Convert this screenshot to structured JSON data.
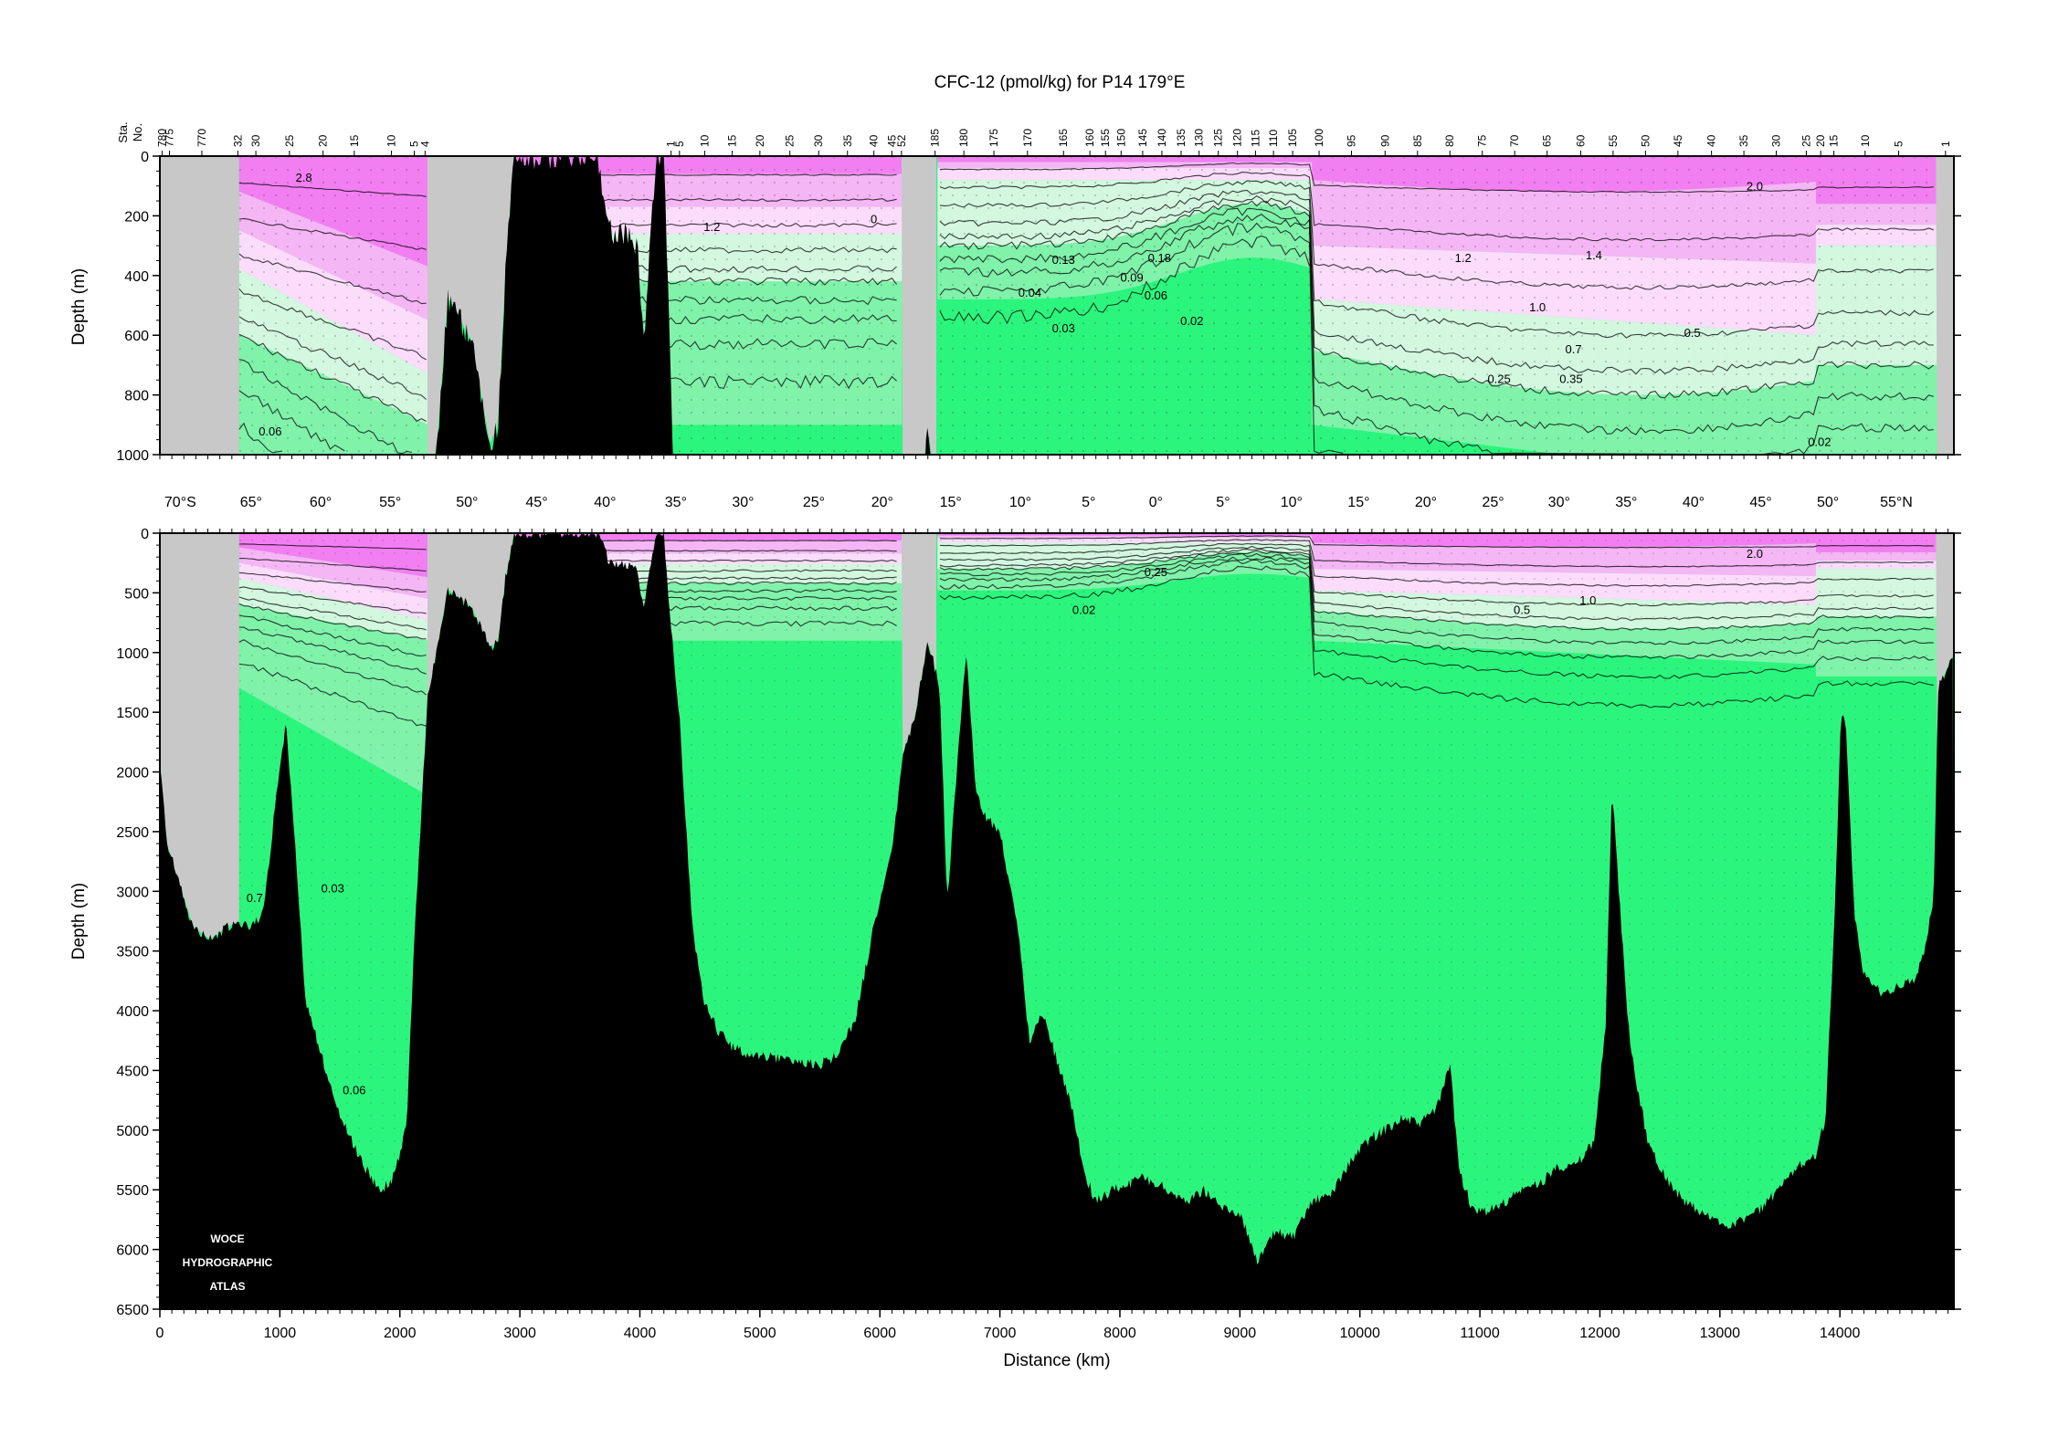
{
  "chart_data": [
    {
      "type": "heatmap",
      "title": "CFC-12 (pmol/kg) for P14 179°E",
      "panel": "upper section, 0-1000 m",
      "xlabel": "",
      "ylabel": "Depth (m)",
      "xlim": [
        0,
        14950
      ],
      "ylim": [
        1000,
        0
      ],
      "y_ticks": [
        0,
        200,
        400,
        600,
        800,
        1000
      ],
      "station_axis_label": [
        "Sta.",
        "No."
      ],
      "station_ticks": [
        {
          "label": "780",
          "x": 20
        },
        {
          "label": "775",
          "x": 80
        },
        {
          "label": "770",
          "x": 350
        },
        {
          "label": "32",
          "x": 650
        },
        {
          "label": "30",
          "x": 800
        },
        {
          "label": "25",
          "x": 1080
        },
        {
          "label": "20",
          "x": 1360
        },
        {
          "label": "15",
          "x": 1620
        },
        {
          "label": "10",
          "x": 1930
        },
        {
          "label": "5",
          "x": 2120
        },
        {
          "label": "4",
          "x": 2210
        },
        {
          "label": "1",
          "x": 4260
        },
        {
          "label": "5",
          "x": 4330
        },
        {
          "label": "10",
          "x": 4540
        },
        {
          "label": "15",
          "x": 4770
        },
        {
          "label": "20",
          "x": 5000
        },
        {
          "label": "25",
          "x": 5250
        },
        {
          "label": "30",
          "x": 5490
        },
        {
          "label": "35",
          "x": 5730
        },
        {
          "label": "40",
          "x": 5950
        },
        {
          "label": "45",
          "x": 6100
        },
        {
          "label": "52",
          "x": 6180
        },
        {
          "label": "185",
          "x": 6460
        },
        {
          "label": "180",
          "x": 6700
        },
        {
          "label": "175",
          "x": 6950
        },
        {
          "label": "170",
          "x": 7230
        },
        {
          "label": "165",
          "x": 7530
        },
        {
          "label": "160",
          "x": 7750
        },
        {
          "label": "155",
          "x": 7880
        },
        {
          "label": "150",
          "x": 8010
        },
        {
          "label": "145",
          "x": 8190
        },
        {
          "label": "140",
          "x": 8350
        },
        {
          "label": "135",
          "x": 8510
        },
        {
          "label": "130",
          "x": 8660
        },
        {
          "label": "125",
          "x": 8820
        },
        {
          "label": "120",
          "x": 8980
        },
        {
          "label": "115",
          "x": 9130
        },
        {
          "label": "110",
          "x": 9280
        },
        {
          "label": "105",
          "x": 9440
        },
        {
          "label": "100",
          "x": 9660
        },
        {
          "label": "95",
          "x": 9930
        },
        {
          "label": "90",
          "x": 10210
        },
        {
          "label": "85",
          "x": 10480
        },
        {
          "label": "80",
          "x": 10750
        },
        {
          "label": "75",
          "x": 11020
        },
        {
          "label": "70",
          "x": 11290
        },
        {
          "label": "65",
          "x": 11560
        },
        {
          "label": "60",
          "x": 11840
        },
        {
          "label": "55",
          "x": 12110
        },
        {
          "label": "50",
          "x": 12380
        },
        {
          "label": "45",
          "x": 12650
        },
        {
          "label": "40",
          "x": 12930
        },
        {
          "label": "35",
          "x": 13200
        },
        {
          "label": "30",
          "x": 13470
        },
        {
          "label": "25",
          "x": 13720
        },
        {
          "label": "20",
          "x": 13840
        },
        {
          "label": "15",
          "x": 13950
        },
        {
          "label": "10",
          "x": 14210
        },
        {
          "label": "5",
          "x": 14490
        },
        {
          "label": "1",
          "x": 14880
        }
      ],
      "contour_labels": [
        {
          "text": "2.8",
          "x": 1200,
          "y": 70
        },
        {
          "text": "0.06",
          "x": 920,
          "y": 920
        },
        {
          "text": "1.2",
          "x": 4600,
          "y": 235
        },
        {
          "text": "0",
          "x": 5950,
          "y": 210
        },
        {
          "text": "0.13",
          "x": 7530,
          "y": 345
        },
        {
          "text": "0.18",
          "x": 8330,
          "y": 340
        },
        {
          "text": "0.09",
          "x": 8100,
          "y": 405
        },
        {
          "text": "0.04",
          "x": 7250,
          "y": 455
        },
        {
          "text": "0.06",
          "x": 8300,
          "y": 465
        },
        {
          "text": "0.03",
          "x": 7530,
          "y": 575
        },
        {
          "text": "0.02",
          "x": 8600,
          "y": 550
        },
        {
          "text": "1.2",
          "x": 10860,
          "y": 340
        },
        {
          "text": "1.4",
          "x": 11950,
          "y": 330
        },
        {
          "text": "1.0",
          "x": 11480,
          "y": 505
        },
        {
          "text": "0.7",
          "x": 11780,
          "y": 645
        },
        {
          "text": "0.5",
          "x": 12770,
          "y": 590
        },
        {
          "text": "0.25",
          "x": 11160,
          "y": 745
        },
        {
          "text": "0.35",
          "x": 11760,
          "y": 745
        },
        {
          "text": "2.0",
          "x": 13290,
          "y": 100
        },
        {
          "text": "0.02",
          "x": 13830,
          "y": 955
        }
      ],
      "colors": {
        "pink_high": "#f27ff2",
        "pink_mid": "#f4b6f4",
        "pink_low": "#fbdcfb",
        "green_light": "#d3f7df",
        "green_mid": "#80f2aa",
        "green_deep": "#2cf57d",
        "topography": "#000000",
        "no_data": "#c8c8c8"
      }
    },
    {
      "type": "heatmap",
      "panel": "lower section, 0-6500 m",
      "xlabel": "Distance (km)",
      "ylabel": "Depth (m)",
      "xlim": [
        0,
        14950
      ],
      "ylim": [
        6500,
        0
      ],
      "y_ticks": [
        0,
        500,
        1000,
        1500,
        2000,
        2500,
        3000,
        3500,
        4000,
        4500,
        5000,
        5500,
        6000,
        6500
      ],
      "x_ticks": [
        0,
        1000,
        2000,
        3000,
        4000,
        5000,
        6000,
        7000,
        8000,
        9000,
        10000,
        11000,
        12000,
        13000,
        14000
      ],
      "latitude_ticks": [
        {
          "label": "70°S",
          "x": 170
        },
        {
          "label": "65°",
          "x": 760
        },
        {
          "label": "60°",
          "x": 1340
        },
        {
          "label": "55°",
          "x": 1920
        },
        {
          "label": "50°",
          "x": 2560
        },
        {
          "label": "45°",
          "x": 3140
        },
        {
          "label": "40°",
          "x": 3710
        },
        {
          "label": "35°",
          "x": 4300
        },
        {
          "label": "30°",
          "x": 4860
        },
        {
          "label": "25°",
          "x": 5450
        },
        {
          "label": "20°",
          "x": 6020
        },
        {
          "label": "15°",
          "x": 6590
        },
        {
          "label": "10°",
          "x": 7170
        },
        {
          "label": "5°",
          "x": 7740
        },
        {
          "label": "0°",
          "x": 8300
        },
        {
          "label": "5°",
          "x": 8860
        },
        {
          "label": "10°",
          "x": 9430
        },
        {
          "label": "15°",
          "x": 9990
        },
        {
          "label": "20°",
          "x": 10550
        },
        {
          "label": "25°",
          "x": 11110
        },
        {
          "label": "30°",
          "x": 11660
        },
        {
          "label": "35°",
          "x": 12220
        },
        {
          "label": "40°",
          "x": 12780
        },
        {
          "label": "45°",
          "x": 13340
        },
        {
          "label": "50°",
          "x": 13900
        },
        {
          "label": "55°N",
          "x": 14470
        }
      ],
      "contour_labels": [
        {
          "text": "0.7",
          "x": 790,
          "y": 3050
        },
        {
          "text": "0.03",
          "x": 1440,
          "y": 2970
        },
        {
          "text": "0.06",
          "x": 1620,
          "y": 4660
        },
        {
          "text": "0.25",
          "x": 8300,
          "y": 320
        },
        {
          "text": "0.02",
          "x": 7700,
          "y": 640
        },
        {
          "text": "0.5",
          "x": 11350,
          "y": 640
        },
        {
          "text": "1.0",
          "x": 11900,
          "y": 560
        },
        {
          "text": "2.0",
          "x": 13290,
          "y": 170
        }
      ],
      "bottom_depth_profile": [
        [
          0,
          1900
        ],
        [
          60,
          2600
        ],
        [
          150,
          2900
        ],
        [
          280,
          3300
        ],
        [
          420,
          3400
        ],
        [
          560,
          3300
        ],
        [
          660,
          3250
        ],
        [
          750,
          3300
        ],
        [
          860,
          3200
        ],
        [
          960,
          2300
        ],
        [
          1050,
          1600
        ],
        [
          1120,
          2500
        ],
        [
          1210,
          3900
        ],
        [
          1330,
          4300
        ],
        [
          1450,
          4750
        ],
        [
          1580,
          5050
        ],
        [
          1700,
          5300
        ],
        [
          1820,
          5500
        ],
        [
          1920,
          5450
        ],
        [
          2000,
          5200
        ],
        [
          2060,
          4900
        ],
        [
          2120,
          3400
        ],
        [
          2230,
          1400
        ],
        [
          2400,
          470
        ],
        [
          2600,
          620
        ],
        [
          2750,
          960
        ],
        [
          2820,
          900
        ],
        [
          2880,
          380
        ],
        [
          2950,
          0
        ],
        [
          3650,
          0
        ],
        [
          3750,
          250
        ],
        [
          3900,
          260
        ],
        [
          3980,
          300
        ],
        [
          4030,
          650
        ],
        [
          4080,
          320
        ],
        [
          4140,
          0
        ],
        [
          4200,
          0
        ],
        [
          4260,
          800
        ],
        [
          4330,
          1550
        ],
        [
          4380,
          2400
        ],
        [
          4440,
          3300
        ],
        [
          4530,
          3900
        ],
        [
          4640,
          4150
        ],
        [
          4760,
          4300
        ],
        [
          4900,
          4370
        ],
        [
          5050,
          4380
        ],
        [
          5300,
          4420
        ],
        [
          5500,
          4450
        ],
        [
          5650,
          4380
        ],
        [
          5800,
          4050
        ],
        [
          5950,
          3300
        ],
        [
          6100,
          2650
        ],
        [
          6200,
          1800
        ],
        [
          6280,
          1600
        ],
        [
          6400,
          900
        ],
        [
          6500,
          1300
        ],
        [
          6560,
          3100
        ],
        [
          6640,
          2000
        ],
        [
          6720,
          1000
        ],
        [
          6800,
          2200
        ],
        [
          6900,
          2400
        ],
        [
          7000,
          2500
        ],
        [
          7150,
          3300
        ],
        [
          7250,
          4300
        ],
        [
          7350,
          4000
        ],
        [
          7470,
          4400
        ],
        [
          7600,
          4800
        ],
        [
          7700,
          5350
        ],
        [
          7800,
          5600
        ],
        [
          7950,
          5500
        ],
        [
          8200,
          5400
        ],
        [
          8400,
          5500
        ],
        [
          8550,
          5600
        ],
        [
          8700,
          5500
        ],
        [
          8850,
          5650
        ],
        [
          9000,
          5700
        ],
        [
          9150,
          6100
        ],
        [
          9300,
          5850
        ],
        [
          9450,
          5900
        ],
        [
          9600,
          5600
        ],
        [
          9750,
          5550
        ],
        [
          9900,
          5300
        ],
        [
          10050,
          5100
        ],
        [
          10200,
          5000
        ],
        [
          10350,
          4900
        ],
        [
          10500,
          4950
        ],
        [
          10650,
          4800
        ],
        [
          10750,
          4450
        ],
        [
          10830,
          5350
        ],
        [
          10950,
          5700
        ],
        [
          11150,
          5650
        ],
        [
          11350,
          5500
        ],
        [
          11500,
          5450
        ],
        [
          11650,
          5300
        ],
        [
          11800,
          5300
        ],
        [
          11950,
          5100
        ],
        [
          12050,
          4100
        ],
        [
          12100,
          2100
        ],
        [
          12150,
          2900
        ],
        [
          12250,
          4300
        ],
        [
          12400,
          5100
        ],
        [
          12550,
          5400
        ],
        [
          12700,
          5600
        ],
        [
          12850,
          5700
        ],
        [
          12950,
          5750
        ],
        [
          13050,
          5800
        ],
        [
          13200,
          5750
        ],
        [
          13350,
          5650
        ],
        [
          13500,
          5500
        ],
        [
          13650,
          5300
        ],
        [
          13800,
          5200
        ],
        [
          13880,
          4900
        ],
        [
          13960,
          3100
        ],
        [
          14010,
          1500
        ],
        [
          14050,
          1650
        ],
        [
          14120,
          3200
        ],
        [
          14200,
          3700
        ],
        [
          14350,
          3850
        ],
        [
          14500,
          3800
        ],
        [
          14620,
          3750
        ],
        [
          14700,
          3500
        ],
        [
          14780,
          3100
        ],
        [
          14820,
          1300
        ],
        [
          14950,
          1000
        ]
      ],
      "logo": {
        "line1": "WOCE",
        "line2": "HYDROGRAPHIC",
        "line3": "ATLAS"
      }
    }
  ]
}
